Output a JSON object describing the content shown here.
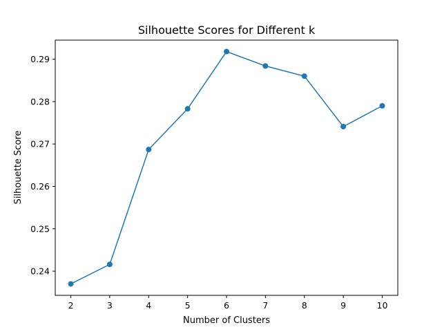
{
  "chart_data": {
    "type": "line",
    "title": "Silhouette Scores for Different k",
    "xlabel": "Number of Clusters",
    "ylabel": "Silhouette Score",
    "x": [
      2,
      3,
      4,
      5,
      6,
      7,
      8,
      9,
      10
    ],
    "series": [
      {
        "values": [
          0.237,
          0.2416,
          0.2687,
          0.2783,
          0.2918,
          0.2884,
          0.286,
          0.2741,
          0.279
        ],
        "marker": "circle"
      }
    ],
    "xticks": [
      "2",
      "3",
      "4",
      "5",
      "6",
      "7",
      "8",
      "9",
      "10"
    ],
    "yticks": [
      "0.24",
      "0.25",
      "0.26",
      "0.27",
      "0.28",
      "0.29"
    ],
    "xlim": [
      1.6,
      10.4
    ],
    "ylim": [
      0.2343,
      0.2945
    ],
    "grid": false,
    "legend": false,
    "colors": {
      "line": "#1f77b4",
      "axes": "#000000",
      "background": "#ffffff"
    }
  }
}
